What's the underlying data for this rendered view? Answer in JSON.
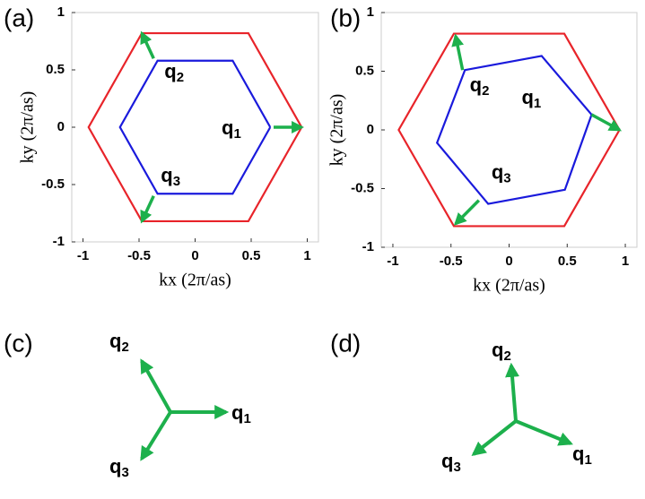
{
  "chart_data": [
    {
      "type": "line",
      "panel_label": "(a)",
      "xlabel": "kx (2π/as)",
      "ylabel": "ky (2π/as)",
      "xlim": [
        -1.1,
        1.1
      ],
      "ylim": [
        -1,
        1
      ],
      "xticks": [
        -1,
        -0.5,
        0,
        0.5,
        1
      ],
      "yticks": [
        -1,
        -0.5,
        0,
        0.5,
        1
      ],
      "series": [
        {
          "color": "#e8242a",
          "x": [
            0.95,
            0.475,
            -0.475,
            -0.95,
            -0.475,
            0.475,
            0.95
          ],
          "values": [
            0,
            0.82,
            0.82,
            0,
            -0.82,
            -0.82,
            0
          ]
        },
        {
          "color": "#1a1adc",
          "x": [
            0.67,
            0.335,
            -0.335,
            -0.67,
            -0.335,
            0.335,
            0.67
          ],
          "values": [
            0,
            0.58,
            0.58,
            0,
            -0.58,
            -0.58,
            0
          ]
        }
      ],
      "arrows": [
        {
          "symbol": "q",
          "index": "1",
          "from": [
            0.7,
            0
          ],
          "to": [
            0.95,
            0
          ]
        },
        {
          "symbol": "q",
          "index": "2",
          "from": [
            -0.37,
            0.6
          ],
          "to": [
            -0.475,
            0.82
          ]
        },
        {
          "symbol": "q",
          "index": "3",
          "from": [
            -0.37,
            -0.6
          ],
          "to": [
            -0.475,
            -0.82
          ]
        }
      ]
    },
    {
      "type": "line",
      "panel_label": "(b)",
      "xlabel": "kx (2π/as)",
      "ylabel": "ky (2π/as)",
      "xlim": [
        -1.1,
        1.1
      ],
      "ylim": [
        -1,
        1
      ],
      "xticks": [
        -1,
        -0.5,
        0,
        0.5,
        1
      ],
      "yticks": [
        -1,
        -0.5,
        0,
        0.5,
        1
      ],
      "series": [
        {
          "color": "#e8242a",
          "x": [
            0.95,
            0.475,
            -0.475,
            -0.95,
            -0.475,
            0.475,
            0.95
          ],
          "values": [
            0,
            0.82,
            0.82,
            0,
            -0.82,
            -0.82,
            0
          ]
        },
        {
          "color": "#1a1adc",
          "x": [
            0.71,
            0.28,
            -0.38,
            -0.62,
            -0.18,
            0.48,
            0.71
          ],
          "values": [
            0.13,
            0.63,
            0.51,
            -0.11,
            -0.63,
            -0.51,
            0.13
          ]
        }
      ],
      "arrows": [
        {
          "symbol": "q",
          "index": "1",
          "from": [
            0.71,
            0.13
          ],
          "to": [
            0.95,
            0
          ]
        },
        {
          "symbol": "q",
          "index": "2",
          "from": [
            -0.4,
            0.51
          ],
          "to": [
            -0.46,
            0.8
          ]
        },
        {
          "symbol": "q",
          "index": "3",
          "from": [
            -0.26,
            -0.6
          ],
          "to": [
            -0.46,
            -0.8
          ]
        }
      ]
    }
  ],
  "diagrams": [
    {
      "panel_label": "(c)",
      "vectors": [
        {
          "symbol": "q",
          "index": "1"
        },
        {
          "symbol": "q",
          "index": "2"
        },
        {
          "symbol": "q",
          "index": "3"
        }
      ]
    },
    {
      "panel_label": "(d)",
      "vectors": [
        {
          "symbol": "q",
          "index": "1"
        },
        {
          "symbol": "q",
          "index": "2"
        },
        {
          "symbol": "q",
          "index": "3"
        }
      ]
    }
  ]
}
